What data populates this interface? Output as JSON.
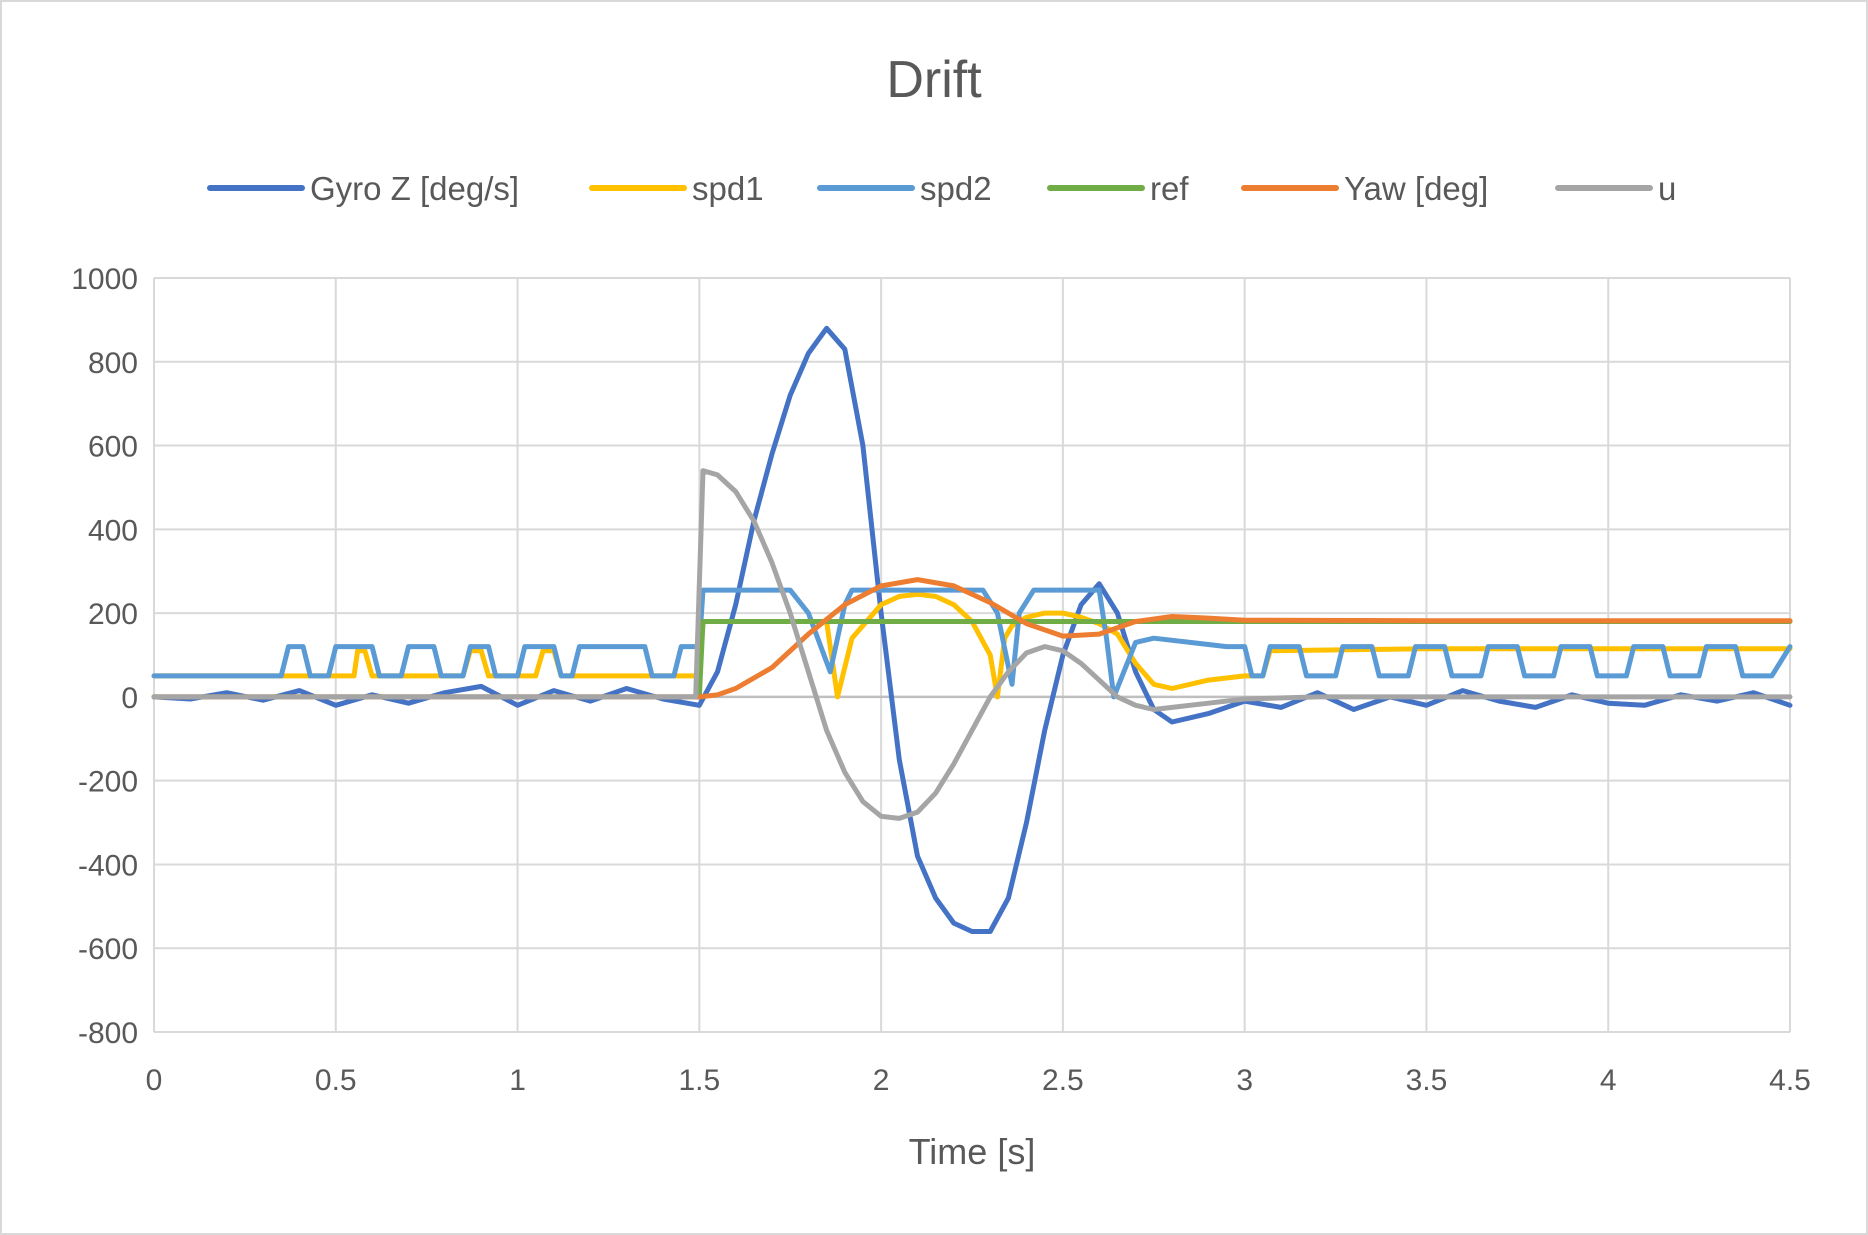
{
  "chart_data": {
    "type": "line",
    "title": "Drift",
    "xlabel": "Time [s]",
    "ylabel": "",
    "xlim": [
      0,
      4.5
    ],
    "ylim": [
      -800,
      1000
    ],
    "x_ticks": [
      0,
      0.5,
      1,
      1.5,
      2,
      2.5,
      3,
      3.5,
      4,
      4.5
    ],
    "x_tick_labels": [
      "0",
      "0.5",
      "1",
      "1.5",
      "2",
      "2.5",
      "3",
      "3.5",
      "4",
      "4.5"
    ],
    "y_ticks": [
      -800,
      -600,
      -400,
      -200,
      0,
      200,
      400,
      600,
      800,
      1000
    ],
    "y_tick_labels": [
      "-800",
      "-600",
      "-400",
      "-200",
      "0",
      "200",
      "400",
      "600",
      "800",
      "1000"
    ],
    "grid": true,
    "legend_position": "top",
    "series": [
      {
        "name": "Gyro Z [deg/s]",
        "color": "#4472c4",
        "x": [
          0,
          0.1,
          0.2,
          0.3,
          0.4,
          0.5,
          0.6,
          0.7,
          0.8,
          0.9,
          1.0,
          1.1,
          1.2,
          1.3,
          1.4,
          1.5,
          1.55,
          1.6,
          1.65,
          1.7,
          1.75,
          1.8,
          1.85,
          1.9,
          1.95,
          2.0,
          2.05,
          2.1,
          2.15,
          2.2,
          2.25,
          2.3,
          2.35,
          2.4,
          2.45,
          2.5,
          2.55,
          2.6,
          2.65,
          2.7,
          2.75,
          2.8,
          2.85,
          2.9,
          3.0,
          3.1,
          3.2,
          3.3,
          3.4,
          3.5,
          3.6,
          3.7,
          3.8,
          3.9,
          4.0,
          4.1,
          4.2,
          4.3,
          4.4,
          4.5
        ],
        "values": [
          0,
          -5,
          10,
          -8,
          15,
          -20,
          5,
          -15,
          10,
          25,
          -20,
          15,
          -10,
          20,
          -5,
          -20,
          60,
          220,
          420,
          580,
          720,
          820,
          880,
          830,
          600,
          200,
          -150,
          -380,
          -480,
          -540,
          -560,
          -560,
          -480,
          -300,
          -80,
          100,
          220,
          270,
          200,
          60,
          -30,
          -60,
          -50,
          -40,
          -10,
          -25,
          10,
          -30,
          0,
          -20,
          15,
          -10,
          -25,
          5,
          -15,
          -20,
          5,
          -10,
          10,
          -20
        ]
      },
      {
        "name": "spd1",
        "color": "#ffc000",
        "x": [
          0,
          0.55,
          0.56,
          0.58,
          0.6,
          0.85,
          0.87,
          0.9,
          0.92,
          1.05,
          1.07,
          1.1,
          1.12,
          1.4,
          1.5,
          1.51,
          1.85,
          1.88,
          1.92,
          2.0,
          2.05,
          2.1,
          2.15,
          2.2,
          2.25,
          2.3,
          2.32,
          2.34,
          2.36,
          2.4,
          2.45,
          2.5,
          2.55,
          2.6,
          2.65,
          2.7,
          2.75,
          2.8,
          2.9,
          3.0,
          3.05,
          3.07,
          3.5,
          4.5
        ],
        "values": [
          50,
          50,
          110,
          110,
          50,
          50,
          110,
          110,
          50,
          50,
          110,
          110,
          50,
          50,
          50,
          180,
          180,
          0,
          140,
          220,
          240,
          245,
          240,
          220,
          180,
          100,
          0,
          140,
          170,
          190,
          200,
          200,
          190,
          175,
          150,
          80,
          30,
          20,
          40,
          50,
          50,
          110,
          115,
          115
        ]
      },
      {
        "name": "spd2",
        "color": "#5b9bd5",
        "x": [
          0,
          0.35,
          0.37,
          0.41,
          0.43,
          0.48,
          0.5,
          0.6,
          0.62,
          0.68,
          0.7,
          0.77,
          0.79,
          0.85,
          0.87,
          0.92,
          0.94,
          1.0,
          1.02,
          1.1,
          1.12,
          1.15,
          1.17,
          1.3,
          1.35,
          1.37,
          1.43,
          1.45,
          1.5,
          1.51,
          1.75,
          1.8,
          1.86,
          1.9,
          1.92,
          2.28,
          2.32,
          2.36,
          2.38,
          2.42,
          2.6,
          2.62,
          2.64,
          2.7,
          2.75,
          2.85,
          2.95,
          3.0,
          3.02,
          3.05,
          3.07,
          3.15,
          3.17,
          3.25,
          3.27,
          3.35,
          3.37,
          3.45,
          3.47,
          3.55,
          3.57,
          3.65,
          3.67,
          3.75,
          3.77,
          3.85,
          3.87,
          3.95,
          3.97,
          4.05,
          4.07,
          4.15,
          4.17,
          4.25,
          4.27,
          4.35,
          4.37,
          4.45,
          4.5
        ],
        "values": [
          50,
          50,
          120,
          120,
          50,
          50,
          120,
          120,
          50,
          50,
          120,
          120,
          50,
          50,
          120,
          120,
          50,
          50,
          120,
          120,
          50,
          50,
          120,
          120,
          120,
          50,
          50,
          120,
          120,
          255,
          255,
          200,
          60,
          220,
          255,
          255,
          200,
          30,
          200,
          255,
          255,
          140,
          0,
          130,
          140,
          130,
          120,
          120,
          50,
          50,
          120,
          120,
          50,
          50,
          120,
          120,
          50,
          50,
          120,
          120,
          50,
          50,
          120,
          120,
          50,
          50,
          120,
          120,
          50,
          50,
          120,
          120,
          50,
          50,
          120,
          120,
          50,
          50,
          120
        ]
      },
      {
        "name": "ref",
        "color": "#70ad47",
        "x": [
          0,
          1.5,
          1.51,
          4.5
        ],
        "values": [
          0,
          0,
          180,
          180
        ]
      },
      {
        "name": "Yaw [deg]",
        "color": "#ed7d31",
        "x": [
          0,
          1.5,
          1.55,
          1.6,
          1.7,
          1.8,
          1.9,
          2.0,
          2.1,
          2.2,
          2.3,
          2.4,
          2.5,
          2.6,
          2.7,
          2.8,
          2.9,
          3.0,
          3.5,
          4.0,
          4.5
        ],
        "values": [
          0,
          0,
          5,
          20,
          70,
          150,
          220,
          265,
          280,
          265,
          225,
          175,
          145,
          150,
          180,
          192,
          188,
          183,
          182,
          182,
          182
        ]
      },
      {
        "name": "u",
        "color": "#a5a5a5",
        "x": [
          0,
          1.49,
          1.51,
          1.55,
          1.6,
          1.65,
          1.7,
          1.75,
          1.8,
          1.85,
          1.9,
          1.95,
          2.0,
          2.05,
          2.1,
          2.15,
          2.2,
          2.25,
          2.3,
          2.35,
          2.4,
          2.45,
          2.5,
          2.55,
          2.6,
          2.65,
          2.7,
          2.75,
          2.8,
          2.9,
          3.0,
          3.2,
          3.5,
          4.0,
          4.5
        ],
        "values": [
          0,
          0,
          540,
          530,
          490,
          420,
          320,
          200,
          60,
          -80,
          -180,
          -250,
          -285,
          -290,
          -275,
          -230,
          -160,
          -80,
          0,
          60,
          105,
          120,
          110,
          80,
          40,
          0,
          -20,
          -30,
          -25,
          -15,
          -5,
          0,
          0,
          0,
          0
        ]
      }
    ]
  }
}
